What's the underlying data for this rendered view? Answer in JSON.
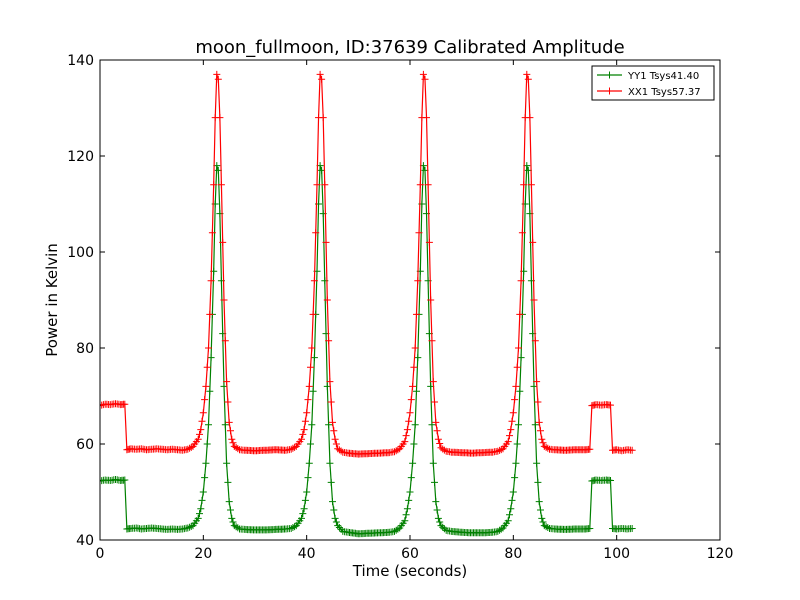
{
  "chart_data": {
    "type": "line",
    "title": "moon_fullmoon, ID:37639 Calibrated Amplitude",
    "xlabel": "Time (seconds)",
    "ylabel": "Power in Kelvin",
    "xlim": [
      0,
      120
    ],
    "ylim": [
      40,
      140
    ],
    "xticks": [
      "0",
      "20",
      "40",
      "60",
      "80",
      "100",
      "120"
    ],
    "yticks": [
      "40",
      "60",
      "80",
      "100",
      "120",
      "140"
    ],
    "grid": false,
    "legend_position": "top-right",
    "marker": "plus",
    "series": [
      {
        "name": "YY1 Tsys41.40",
        "color": "#008000",
        "points": [
          [
            0.0,
            52.3
          ],
          [
            1.0,
            52.5
          ],
          [
            2.0,
            52.4
          ],
          [
            3.0,
            52.6
          ],
          [
            4.0,
            52.4
          ],
          [
            4.8,
            52.5
          ],
          [
            5.2,
            42.3
          ],
          [
            6.0,
            42.4
          ],
          [
            7.0,
            42.5
          ],
          [
            8.0,
            42.3
          ],
          [
            9.0,
            42.4
          ],
          [
            10.0,
            42.5
          ],
          [
            11.0,
            42.4
          ],
          [
            12.0,
            42.3
          ],
          [
            13.0,
            42.2
          ],
          [
            14.0,
            42.3
          ],
          [
            15.0,
            42.2
          ],
          [
            16.0,
            42.3
          ],
          [
            17.0,
            42.5
          ],
          [
            18.0,
            43.0
          ],
          [
            19.0,
            44.5
          ],
          [
            19.5,
            46.5
          ],
          [
            20.0,
            50.0
          ],
          [
            20.5,
            56.0
          ],
          [
            21.0,
            64.0
          ],
          [
            21.5,
            78.0
          ],
          [
            22.0,
            96.0
          ],
          [
            22.3,
            110.0
          ],
          [
            22.6,
            118.0
          ],
          [
            22.9,
            117.0
          ],
          [
            23.2,
            108.0
          ],
          [
            23.5,
            94.0
          ],
          [
            24.0,
            72.0
          ],
          [
            24.5,
            56.0
          ],
          [
            25.0,
            48.0
          ],
          [
            25.5,
            44.5
          ],
          [
            26.0,
            43.0
          ],
          [
            27.0,
            42.3
          ],
          [
            28.0,
            42.2
          ],
          [
            30.0,
            42.1
          ],
          [
            32.0,
            42.1
          ],
          [
            34.0,
            42.2
          ],
          [
            36.0,
            42.3
          ],
          [
            37.0,
            42.4
          ],
          [
            38.0,
            43.0
          ],
          [
            39.0,
            44.5
          ],
          [
            39.5,
            46.5
          ],
          [
            40.0,
            50.0
          ],
          [
            40.5,
            56.0
          ],
          [
            41.0,
            64.0
          ],
          [
            41.5,
            78.0
          ],
          [
            42.0,
            96.0
          ],
          [
            42.3,
            110.0
          ],
          [
            42.6,
            118.0
          ],
          [
            42.9,
            117.0
          ],
          [
            43.2,
            108.0
          ],
          [
            43.5,
            94.0
          ],
          [
            44.0,
            72.0
          ],
          [
            44.5,
            56.0
          ],
          [
            45.0,
            48.0
          ],
          [
            45.5,
            44.5
          ],
          [
            46.0,
            43.0
          ],
          [
            47.0,
            41.8
          ],
          [
            48.0,
            41.6
          ],
          [
            50.0,
            41.3
          ],
          [
            52.0,
            41.4
          ],
          [
            54.0,
            41.5
          ],
          [
            56.0,
            41.6
          ],
          [
            57.0,
            41.8
          ],
          [
            58.0,
            42.5
          ],
          [
            59.0,
            44.0
          ],
          [
            59.5,
            46.5
          ],
          [
            60.0,
            50.0
          ],
          [
            60.5,
            56.0
          ],
          [
            61.0,
            64.0
          ],
          [
            61.5,
            78.0
          ],
          [
            62.0,
            96.0
          ],
          [
            62.3,
            110.0
          ],
          [
            62.6,
            118.0
          ],
          [
            62.9,
            117.0
          ],
          [
            63.2,
            108.0
          ],
          [
            63.5,
            94.0
          ],
          [
            64.0,
            72.0
          ],
          [
            64.5,
            56.0
          ],
          [
            65.0,
            48.0
          ],
          [
            65.5,
            44.5
          ],
          [
            66.0,
            43.0
          ],
          [
            67.0,
            42.0
          ],
          [
            68.0,
            41.8
          ],
          [
            70.0,
            41.6
          ],
          [
            72.0,
            41.5
          ],
          [
            74.0,
            41.5
          ],
          [
            76.0,
            41.6
          ],
          [
            77.0,
            41.8
          ],
          [
            78.0,
            42.5
          ],
          [
            79.0,
            44.0
          ],
          [
            79.5,
            46.5
          ],
          [
            80.0,
            50.0
          ],
          [
            80.5,
            56.0
          ],
          [
            81.0,
            64.0
          ],
          [
            81.5,
            78.0
          ],
          [
            82.0,
            96.0
          ],
          [
            82.3,
            110.0
          ],
          [
            82.6,
            118.0
          ],
          [
            82.9,
            117.0
          ],
          [
            83.2,
            108.0
          ],
          [
            83.5,
            94.0
          ],
          [
            84.0,
            72.0
          ],
          [
            84.5,
            56.0
          ],
          [
            85.0,
            48.0
          ],
          [
            85.5,
            44.5
          ],
          [
            86.0,
            43.0
          ],
          [
            87.0,
            42.4
          ],
          [
            88.0,
            42.3
          ],
          [
            90.0,
            42.2
          ],
          [
            92.0,
            42.3
          ],
          [
            94.0,
            42.3
          ],
          [
            94.8,
            42.4
          ],
          [
            95.2,
            52.3
          ],
          [
            96.0,
            52.5
          ],
          [
            97.0,
            52.4
          ],
          [
            98.0,
            52.5
          ],
          [
            98.8,
            52.4
          ],
          [
            99.2,
            42.4
          ],
          [
            100.0,
            42.3
          ],
          [
            101.0,
            42.4
          ],
          [
            102.0,
            42.3
          ],
          [
            103.0,
            42.4
          ]
        ]
      },
      {
        "name": "XX1 Tsys57.37",
        "color": "#ff0000",
        "points": [
          [
            0.0,
            68.0
          ],
          [
            1.0,
            68.3
          ],
          [
            2.0,
            68.2
          ],
          [
            3.0,
            68.4
          ],
          [
            4.0,
            68.2
          ],
          [
            4.8,
            68.3
          ],
          [
            5.2,
            58.8
          ],
          [
            6.0,
            59.0
          ],
          [
            7.0,
            58.9
          ],
          [
            8.0,
            59.0
          ],
          [
            9.0,
            58.8
          ],
          [
            10.0,
            58.9
          ],
          [
            11.0,
            59.0
          ],
          [
            12.0,
            58.9
          ],
          [
            13.0,
            58.8
          ],
          [
            14.0,
            58.9
          ],
          [
            15.0,
            58.8
          ],
          [
            16.0,
            58.7
          ],
          [
            17.0,
            58.9
          ],
          [
            18.0,
            59.5
          ],
          [
            19.0,
            61.0
          ],
          [
            19.5,
            63.0
          ],
          [
            20.0,
            66.5
          ],
          [
            20.5,
            72.0
          ],
          [
            21.0,
            80.0
          ],
          [
            21.5,
            94.0
          ],
          [
            22.0,
            114.0
          ],
          [
            22.3,
            128.0
          ],
          [
            22.6,
            137.0
          ],
          [
            22.9,
            136.0
          ],
          [
            23.2,
            128.0
          ],
          [
            23.5,
            114.0
          ],
          [
            24.0,
            90.0
          ],
          [
            24.5,
            73.0
          ],
          [
            25.0,
            64.5
          ],
          [
            25.5,
            61.0
          ],
          [
            26.0,
            59.5
          ],
          [
            27.0,
            58.8
          ],
          [
            28.0,
            58.7
          ],
          [
            30.0,
            58.6
          ],
          [
            32.0,
            58.7
          ],
          [
            34.0,
            58.8
          ],
          [
            36.0,
            58.7
          ],
          [
            37.0,
            58.9
          ],
          [
            38.0,
            59.5
          ],
          [
            39.0,
            61.0
          ],
          [
            39.5,
            63.0
          ],
          [
            40.0,
            66.5
          ],
          [
            40.5,
            72.0
          ],
          [
            41.0,
            80.0
          ],
          [
            41.5,
            94.0
          ],
          [
            42.0,
            114.0
          ],
          [
            42.3,
            128.0
          ],
          [
            42.6,
            137.0
          ],
          [
            42.9,
            136.0
          ],
          [
            43.2,
            128.0
          ],
          [
            43.5,
            114.0
          ],
          [
            44.0,
            90.0
          ],
          [
            44.5,
            73.0
          ],
          [
            45.0,
            64.5
          ],
          [
            45.5,
            61.0
          ],
          [
            46.0,
            59.0
          ],
          [
            47.0,
            58.3
          ],
          [
            48.0,
            58.1
          ],
          [
            50.0,
            57.9
          ],
          [
            52.0,
            58.0
          ],
          [
            54.0,
            58.1
          ],
          [
            56.0,
            58.2
          ],
          [
            57.0,
            58.4
          ],
          [
            58.0,
            59.0
          ],
          [
            59.0,
            60.5
          ],
          [
            59.5,
            63.0
          ],
          [
            60.0,
            66.5
          ],
          [
            60.5,
            72.0
          ],
          [
            61.0,
            80.0
          ],
          [
            61.5,
            94.0
          ],
          [
            62.0,
            114.0
          ],
          [
            62.3,
            128.0
          ],
          [
            62.6,
            137.0
          ],
          [
            62.9,
            136.0
          ],
          [
            63.2,
            128.0
          ],
          [
            63.5,
            114.0
          ],
          [
            64.0,
            90.0
          ],
          [
            64.5,
            73.0
          ],
          [
            65.0,
            64.5
          ],
          [
            65.5,
            61.0
          ],
          [
            66.0,
            59.2
          ],
          [
            67.0,
            58.5
          ],
          [
            68.0,
            58.3
          ],
          [
            70.0,
            58.2
          ],
          [
            72.0,
            58.1
          ],
          [
            74.0,
            58.2
          ],
          [
            76.0,
            58.3
          ],
          [
            77.0,
            58.5
          ],
          [
            78.0,
            59.0
          ],
          [
            79.0,
            60.5
          ],
          [
            79.5,
            63.0
          ],
          [
            80.0,
            66.5
          ],
          [
            80.5,
            72.0
          ],
          [
            81.0,
            80.0
          ],
          [
            81.5,
            94.0
          ],
          [
            82.0,
            114.0
          ],
          [
            82.3,
            128.0
          ],
          [
            82.6,
            137.0
          ],
          [
            82.9,
            136.0
          ],
          [
            83.2,
            128.0
          ],
          [
            83.5,
            114.0
          ],
          [
            84.0,
            90.0
          ],
          [
            84.5,
            73.0
          ],
          [
            85.0,
            64.5
          ],
          [
            85.5,
            61.0
          ],
          [
            86.0,
            59.5
          ],
          [
            87.0,
            58.9
          ],
          [
            88.0,
            58.8
          ],
          [
            90.0,
            58.7
          ],
          [
            92.0,
            58.8
          ],
          [
            94.0,
            58.8
          ],
          [
            94.8,
            58.9
          ],
          [
            95.2,
            68.0
          ],
          [
            96.0,
            68.2
          ],
          [
            97.0,
            68.1
          ],
          [
            98.0,
            68.2
          ],
          [
            98.8,
            68.1
          ],
          [
            99.2,
            58.7
          ],
          [
            100.0,
            58.8
          ],
          [
            101.0,
            58.6
          ],
          [
            102.0,
            58.8
          ],
          [
            103.0,
            58.7
          ]
        ]
      }
    ]
  }
}
